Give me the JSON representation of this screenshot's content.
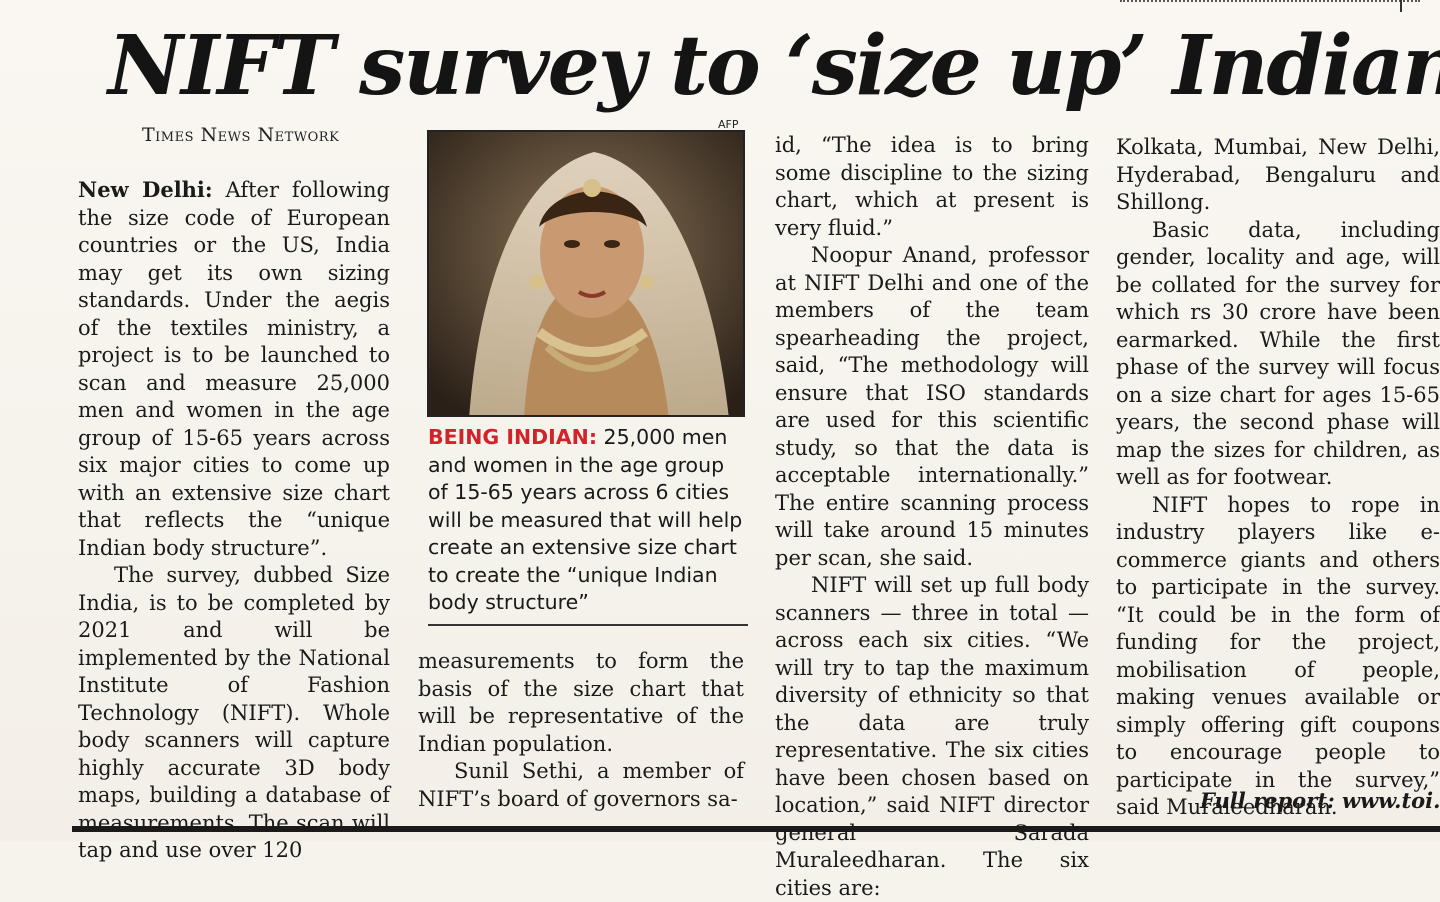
{
  "article": {
    "headline": "NIFT survey to ‘size up’ Indians",
    "byline": "Times News Network",
    "photo_credit": "AFP",
    "caption_lead": "BEING INDIAN:",
    "caption_text": " 25,000 men and women in the age group of 15-65 years across 6 cities will be measured that will help create an extensive size chart to create the “unique Indian body structure”",
    "dateline": "New Delhi:",
    "col1_p1": " After following the size code of European countries or the US, India may get its own sizing standards. Under the aegis of the textiles ministry, a project is to be launched to scan and measure 25,000 men and women in the age group of 15-65 years across six major cities to come up with an extensive size chart that reflects the “unique Indian body structure”.",
    "col1_p2": "The survey, dubbed Size India, is to be completed by 2021 and will be implemented by the National Institute of Fashion Technology (NIFT). Whole body scanners will capture highly accurate 3D body maps, building a database of measurements. The scan will tap and use over 120",
    "col2_p1": "measurements to form the basis of the size chart that will be representative of the Indian population.",
    "col2_p2": "Sunil Sethi, a member of NIFT’s board of governors sa-",
    "col3_p1": "id, “The idea is to bring some discipline to the sizing chart, which at present is very fluid.”",
    "col3_p2": "Noopur Anand, professor at NIFT Delhi and one of the members of the team spearheading the project, said, “The methodology will ensure that ISO standards are used for this scientific study, so that the data is acceptable internationally.” The entire scanning process will take around 15 minutes per scan, she said.",
    "col3_p3": "NIFT will set up full body scanners — three in total — across each six cities. “We will try to tap the maximum diversity of ethnicity so that the data are truly representative. The six cities have been chosen based on location,” said NIFT director general Sarada Muraleedharan. The six cities are:",
    "col4_p1": "Kolkata, Mumbai, New Delhi, Hyderabad, Bengaluru and Shillong.",
    "col4_p2": "Basic data, including gender, locality and age, will be collated for the survey for which rs 30 crore have been earmarked. While the first phase of the survey will focus on a size chart for ages 15-65 years, the second phase will map the sizes for children, as well as for footwear.",
    "col4_p3": "NIFT hopes to rope in industry players like e-commerce giants and others to participate in the survey. “It could be in the form of funding for the project, mobilisation of people, making venues available or simply offering gift coupons to encourage people to participate in the survey,” said Muraleedharan.",
    "full_report": "Full report: www.toi.in"
  },
  "colors": {
    "caption_accent": "#d2232a",
    "ink": "#1a1a1a",
    "paper": "#f6f2ec"
  }
}
